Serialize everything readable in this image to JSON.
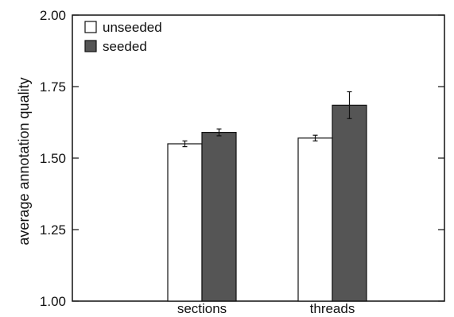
{
  "chart_data": {
    "type": "bar",
    "title": "",
    "xlabel": "",
    "ylabel": "average annotation quality",
    "categories": [
      "sections",
      "threads"
    ],
    "series": [
      {
        "name": "unseeded",
        "values": [
          1.55,
          1.57
        ],
        "errors": [
          0.01,
          0.01
        ],
        "color": "#ffffff"
      },
      {
        "name": "seeded",
        "values": [
          1.59,
          1.685
        ],
        "errors": [
          0.012,
          0.047
        ],
        "color": "#555555"
      }
    ],
    "ylim": [
      1.0,
      2.0
    ],
    "yticks": [
      "1.00",
      "1.25",
      "1.50",
      "1.75",
      "2.00"
    ],
    "grid": false,
    "legend_position": "top-left"
  }
}
